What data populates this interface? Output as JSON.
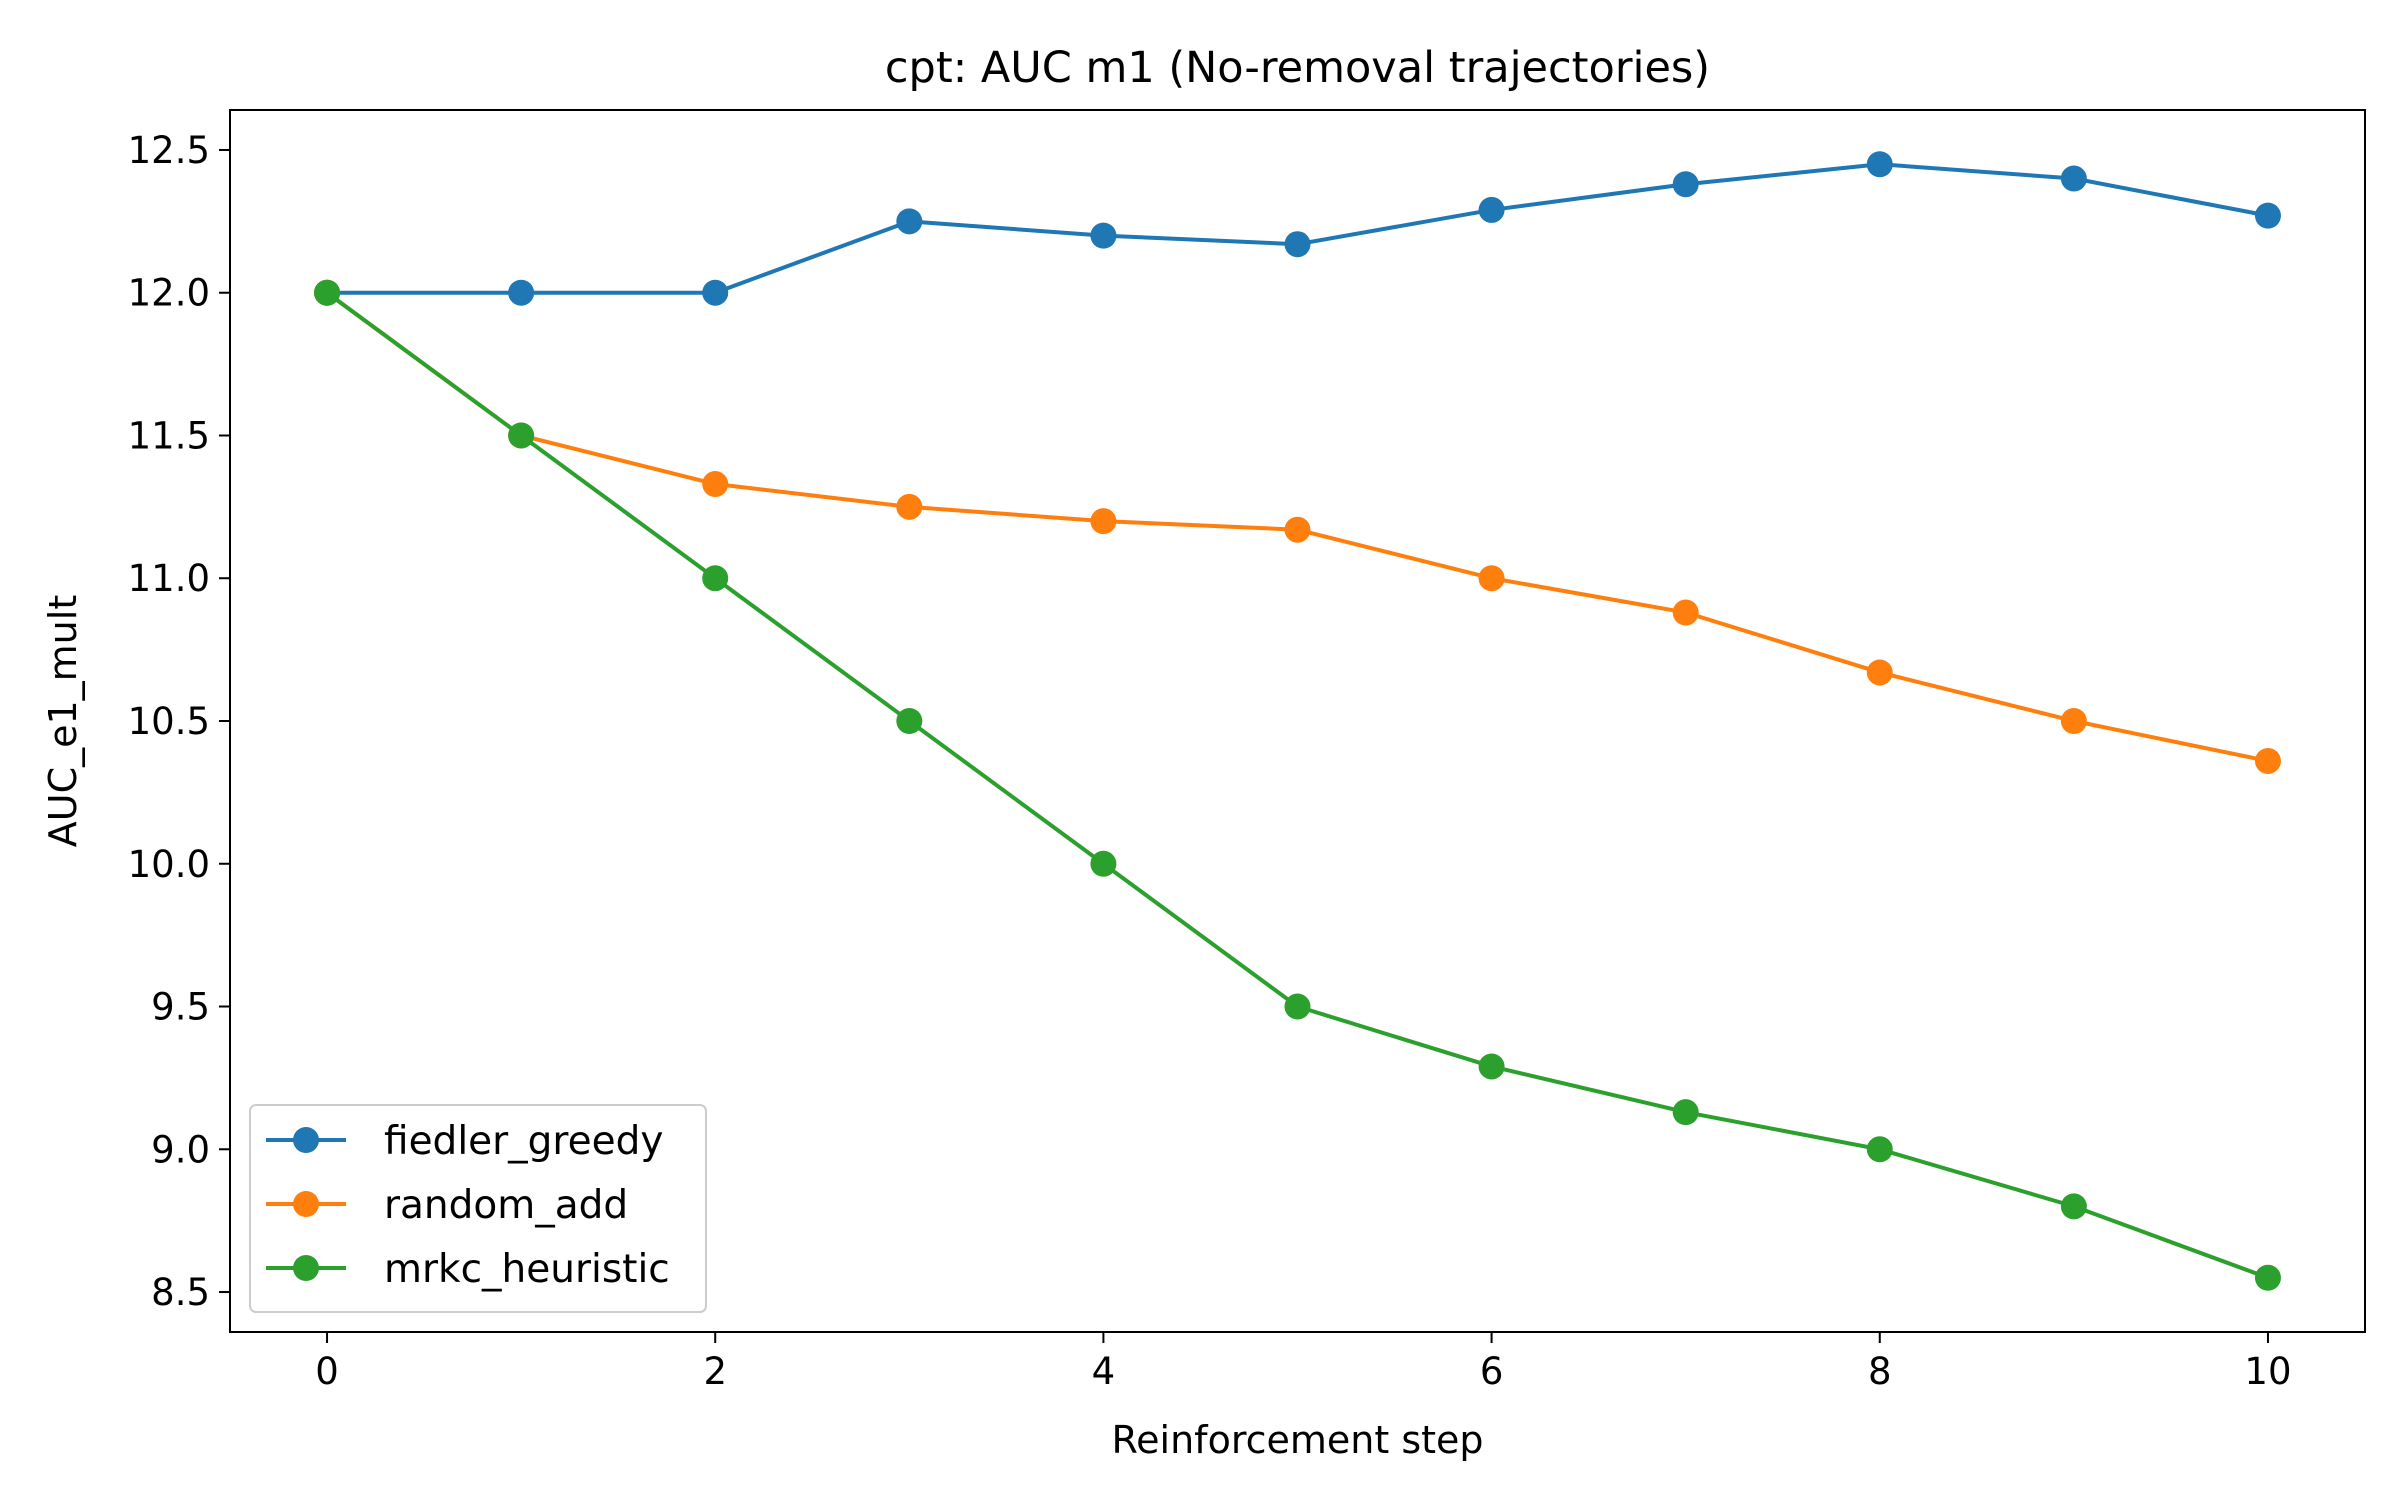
{
  "chart_data": {
    "type": "line",
    "title": "cpt: AUC m1 (No-removal trajectories)",
    "xlabel": "Reinforcement step",
    "ylabel": "AUC_e1_mult",
    "xlim": [
      -0.5,
      10.5
    ],
    "ylim": [
      8.36,
      12.64
    ],
    "x_ticks": [
      0,
      2,
      4,
      6,
      8,
      10
    ],
    "x_tick_labels": [
      "0",
      "2",
      "4",
      "6",
      "8",
      "10"
    ],
    "y_ticks": [
      8.5,
      9.0,
      9.5,
      10.0,
      10.5,
      11.0,
      11.5,
      12.0,
      12.5
    ],
    "y_tick_labels": [
      "8.5",
      "9.0",
      "9.5",
      "10.0",
      "10.5",
      "11.0",
      "11.5",
      "12.0",
      "12.5"
    ],
    "grid": false,
    "legend_position": "lower-left",
    "x": [
      0,
      1,
      2,
      3,
      4,
      5,
      6,
      7,
      8,
      9,
      10
    ],
    "series": [
      {
        "name": "fiedler_greedy",
        "color": "#1f77b4",
        "values": [
          12.0,
          12.0,
          12.0,
          12.25,
          12.2,
          12.17,
          12.29,
          12.38,
          12.45,
          12.4,
          12.27
        ]
      },
      {
        "name": "random_add",
        "color": "#ff7f0e",
        "values": [
          12.0,
          11.5,
          11.33,
          11.25,
          11.2,
          11.17,
          11.0,
          10.88,
          10.67,
          10.5,
          10.36
        ]
      },
      {
        "name": "mrkc_heuristic",
        "color": "#2ca02c",
        "values": [
          12.0,
          11.5,
          11.0,
          10.5,
          10.0,
          9.5,
          9.29,
          9.13,
          9.0,
          8.8,
          8.55
        ]
      }
    ]
  }
}
